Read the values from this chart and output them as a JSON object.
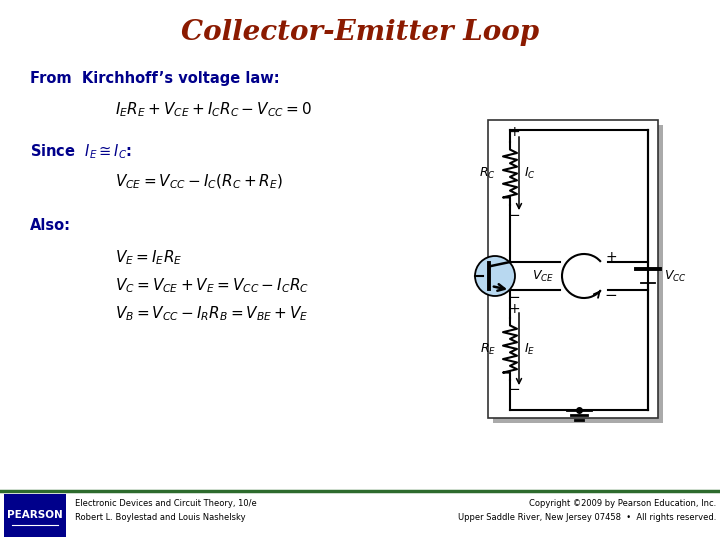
{
  "title": "Collector-Emitter Loop",
  "title_color": "#8B1A00",
  "title_fontsize": 20,
  "bg_color": "#FFFFFF",
  "text_color_blue": "#00008B",
  "text_color_dark": "#000000",
  "label1": "From  Kirchhoff’s voltage law:",
  "eq1": "$I_E R_E + V_{CE} + I_C R_C - V_{CC} = 0$",
  "label2": "Since  $I_E \\cong I_C$:",
  "eq2": "$V_{CE} = V_{CC} - I_C(R_C + R_E)$",
  "label3": "Also:",
  "eq3a": "$V_E = I_E R_E$",
  "eq3b": "$V_C = V_{CE} + V_E = V_{CC} - I_C R_C$",
  "eq3c": "$V_B = V_{CC} - I_R R_B = V_{BE} + V_E$",
  "footer_left1": "Electronic Devices and Circuit Theory, 10/e",
  "footer_left2": "Robert L. Boylestad and Louis Nashelsky",
  "footer_right1": "Copyright ©2009 by Pearson Education, Inc.",
  "footer_right2": "Upper Saddle River, New Jersey 07458  •  All rights reserved.",
  "footer_color": "#000000",
  "bar_color": "#2d6b2d",
  "pearson_bg": "#00008B"
}
